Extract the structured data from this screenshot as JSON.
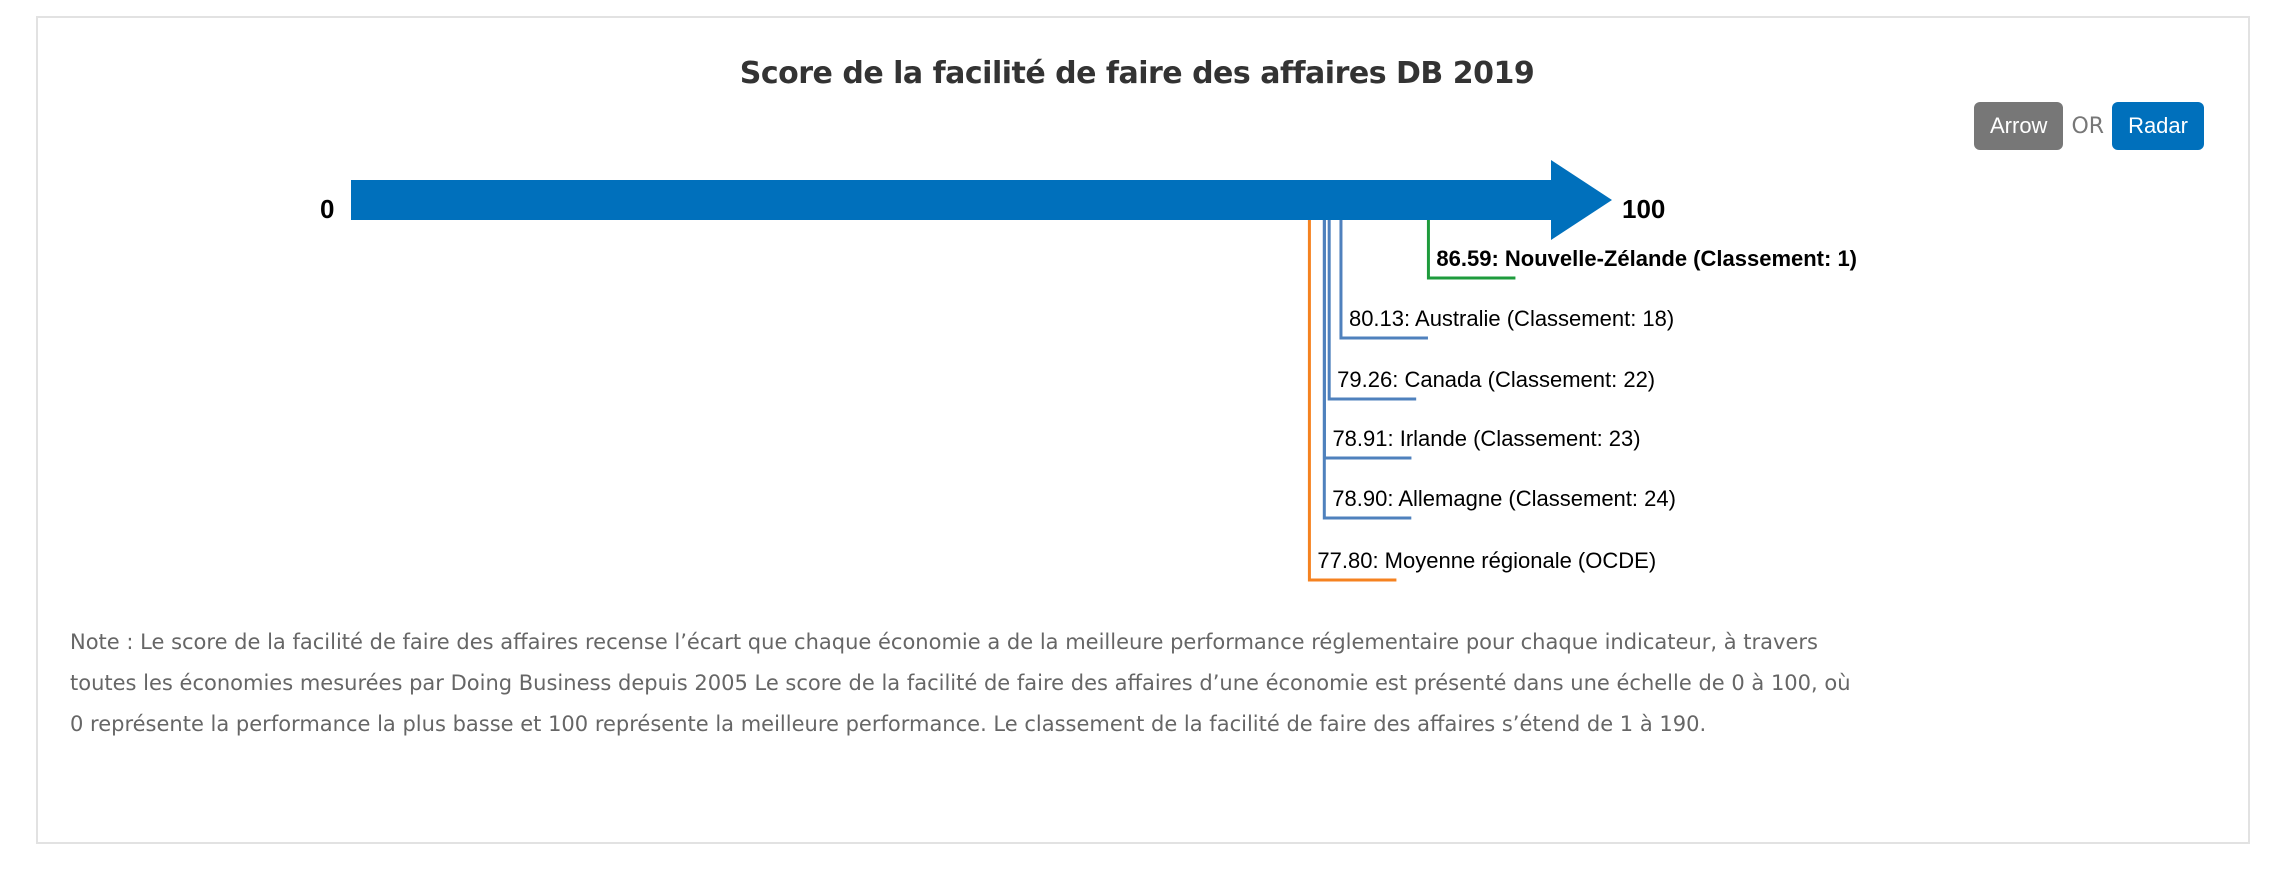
{
  "title": "Score de la facilité de faire des affaires DB 2019",
  "toggle": {
    "arrow_label": "Arrow",
    "or_label": "OR",
    "radar_label": "Radar",
    "active": "Arrow"
  },
  "chart_data": {
    "type": "arrow",
    "title": "Score de la facilité de faire des affaires DB 2019",
    "xlim": [
      0,
      100
    ],
    "min_label": "0",
    "max_label": "100",
    "arrow_color": "#0070bc",
    "points": [
      {
        "value": 86.59,
        "label": "86.59: Nouvelle-Zélande (Classement: 1)",
        "color": "#1e9b3c",
        "bold": true
      },
      {
        "value": 80.13,
        "label": "80.13: Australie (Classement: 18)",
        "color": "#4f81bd",
        "bold": false
      },
      {
        "value": 79.26,
        "label": "79.26: Canada (Classement: 22)",
        "color": "#4f81bd",
        "bold": false
      },
      {
        "value": 78.91,
        "label": "78.91: Irlande (Classement: 23)",
        "color": "#4f81bd",
        "bold": false
      },
      {
        "value": 78.9,
        "label": "78.90: Allemagne (Classement: 24)",
        "color": "#4f81bd",
        "bold": false
      },
      {
        "value": 77.8,
        "label": "77.80: Moyenne régionale (OCDE)",
        "color": "#f58220",
        "bold": false
      }
    ]
  },
  "note": "Note : Le score de la facilité de faire des affaires recense l’écart que chaque économie a de la meilleure performance réglementaire pour chaque indicateur, à travers toutes les économies mesurées par Doing Business depuis 2005 Le score de la facilité de faire des affaires d’une économie est présenté dans une échelle de 0 à 100, où 0 représente la performance la plus basse et 100 représente la meilleure performance. Le classement de la facilité de faire des affaires s’étend de 1 à 190."
}
